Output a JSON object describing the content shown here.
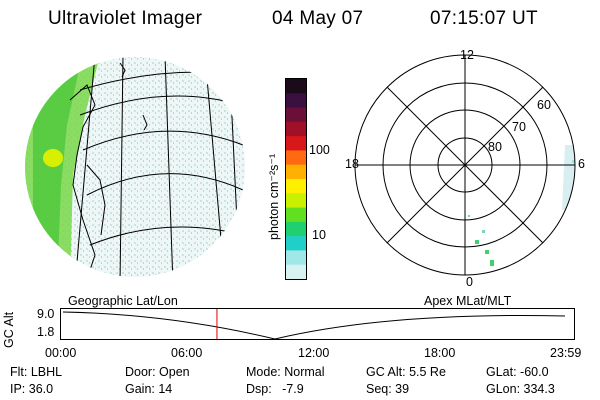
{
  "header": {
    "instrument": "Ultraviolet Imager",
    "date": "04 May 07",
    "time": "07:15:07 UT"
  },
  "colorbar": {
    "unit_label": "photon cm⁻²s⁻¹",
    "ticks": [
      "100",
      "10"
    ],
    "colors": [
      "#1a0a1a",
      "#3a1040",
      "#6a1038",
      "#a01028",
      "#d81818",
      "#ff6a10",
      "#ffb000",
      "#fff000",
      "#c8f000",
      "#60e020",
      "#20d070",
      "#20d0c8",
      "#a0e8e8",
      "#d8f2f2"
    ]
  },
  "polar": {
    "mlt_labels": [
      "12",
      "18",
      "6",
      "0"
    ],
    "lat_labels": [
      "60",
      "70",
      "80"
    ]
  },
  "orbit": {
    "y_axis_label": "GC Alt",
    "y_ticks": [
      "9.0",
      "1.8"
    ],
    "left_title": "Geographic Lat/Lon",
    "right_title": "Apex MLat/MLT",
    "x_ticks": [
      "00:00",
      "06:00",
      "12:00",
      "18:00",
      "23:59"
    ],
    "current_time_fraction": 0.304,
    "marker_color": "#e00000"
  },
  "status": {
    "filter": "Flt: LBHL",
    "door": "Door: Open",
    "mode": "Mode: Normal",
    "gc_alt": "GC Alt: 5.5 Re",
    "glat": "GLat: -60.0",
    "ip": "IP: 36.0",
    "gain": "Gain: 14",
    "dsp": "Dsp:   -7.9",
    "seq": "Seq: 39",
    "glon": "GLon: 334.3"
  }
}
